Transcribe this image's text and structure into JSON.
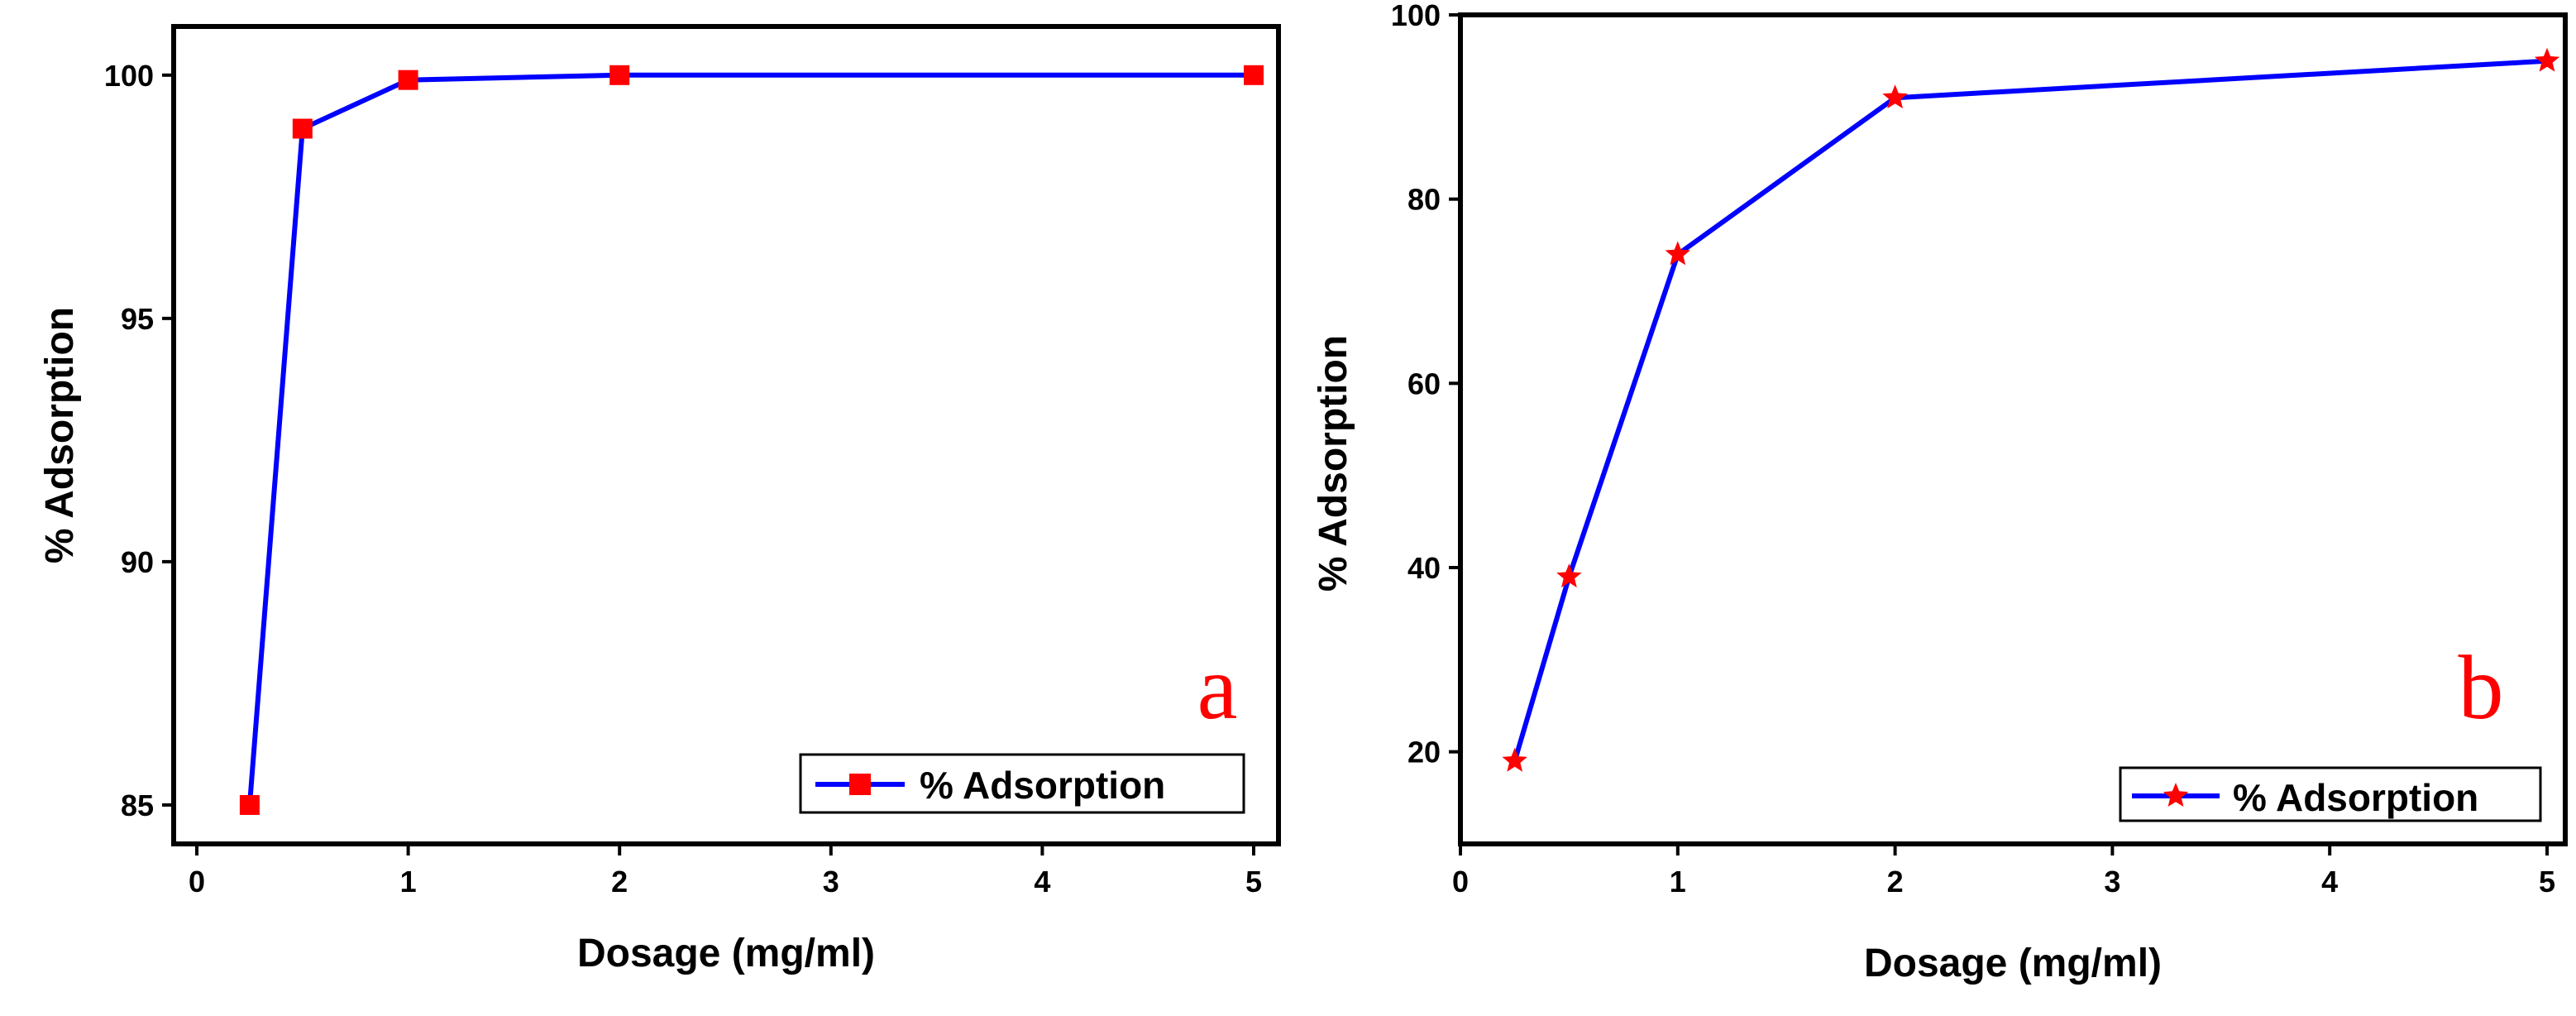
{
  "chart_data": [
    {
      "type": "line",
      "panel_label": "a",
      "xlabel": "Dosage (mg/ml)",
      "ylabel": "% Adsorption",
      "xlim": [
        0,
        5
      ],
      "ylim": [
        84.2,
        101.0
      ],
      "xticks": [
        0,
        1,
        2,
        3,
        4,
        5
      ],
      "xtick_labels": [
        "0",
        "1",
        "2",
        "3",
        "4",
        "5"
      ],
      "yticks": [
        85,
        90,
        95,
        100
      ],
      "ytick_labels": [
        "85",
        "90",
        "95",
        "100"
      ],
      "grid": false,
      "legend_position": "bottom-right",
      "series": [
        {
          "name": "% Adsorption",
          "marker": "square",
          "x": [
            0.25,
            0.5,
            1,
            2,
            5
          ],
          "values": [
            85.0,
            98.9,
            99.9,
            100.0,
            100.0
          ]
        }
      ],
      "colors": {
        "line": "#0000ff",
        "marker": "#ff0000",
        "panel_letter": "#ff0000"
      }
    },
    {
      "type": "line",
      "panel_label": "b",
      "xlabel": "Dosage (mg/ml)",
      "ylabel": "% Adsorption",
      "xlim": [
        0,
        5
      ],
      "ylim": [
        10,
        100
      ],
      "xticks": [
        0,
        1,
        2,
        3,
        4,
        5
      ],
      "xtick_labels": [
        "0",
        "1",
        "2",
        "3",
        "4",
        "5"
      ],
      "yticks": [
        20,
        40,
        60,
        80,
        100
      ],
      "ytick_labels": [
        "20",
        "40",
        "60",
        "80",
        "100"
      ],
      "grid": false,
      "legend_position": "bottom-right",
      "series": [
        {
          "name": "% Adsorption",
          "marker": "star",
          "x": [
            0.25,
            0.5,
            1,
            2,
            5
          ],
          "values": [
            19,
            39,
            74,
            91,
            95
          ]
        }
      ],
      "colors": {
        "line": "#0000ff",
        "marker": "#ff0000",
        "panel_letter": "#ff0000"
      }
    }
  ]
}
